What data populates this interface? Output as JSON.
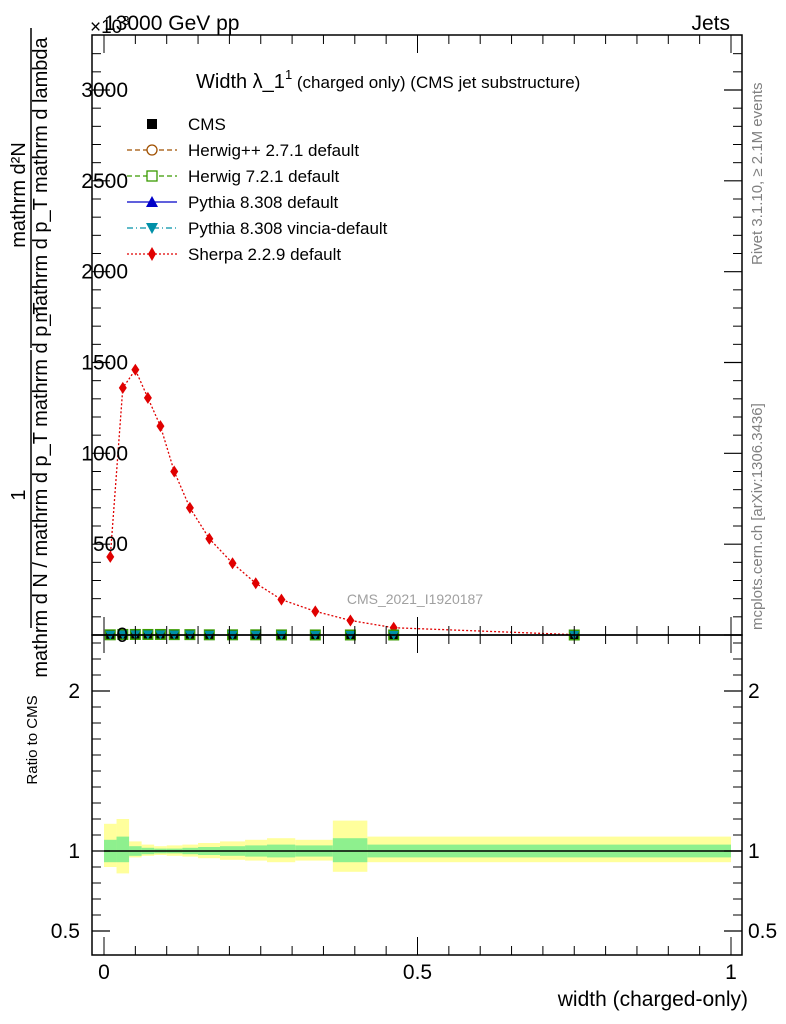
{
  "header": {
    "left": "13000 GeV pp",
    "right": "Jets",
    "exponent_label": "×10",
    "exponent_power": "3"
  },
  "side_labels": {
    "rivet": "Rivet 3.1.10, ≥ 2.1M events",
    "mcplots": "mcplots.cern.ch [arXiv:1306.3436]"
  },
  "watermark": "CMS_2021_I1920187",
  "chart_data": [
    {
      "type": "line",
      "title": "Width λ_1¹ (charged only) (CMS jet substructure)",
      "title_main": "Width λ_1",
      "title_sup": "1",
      "title_rest": " (charged only) (CMS jet substructure)",
      "ylabel_parts": [
        "mathrm d²N",
        "mathrm d p_T mathrm d lambda",
        "mathrm d N / mathrm d p_T mathrm d p_T"
      ],
      "xlim": [
        0,
        1
      ],
      "ylim": [
        0,
        3000
      ],
      "yticks": [
        {
          "v": 0,
          "label": "0"
        },
        {
          "v": 500,
          "label": "500"
        },
        {
          "v": 1000,
          "label": "1000"
        },
        {
          "v": 1500,
          "label": "1500"
        },
        {
          "v": 2000,
          "label": "2000"
        },
        {
          "v": 2500,
          "label": "2500"
        },
        {
          "v": 3000,
          "label": "3000"
        }
      ],
      "grid": false,
      "legend_position": "top-left",
      "legend": [
        {
          "name": "CMS",
          "color": "#000000",
          "marker": "square-filled",
          "dash": "none"
        },
        {
          "name": "Herwig++ 2.7.1 default",
          "color": "#a05000",
          "marker": "circle-open",
          "dash": "dashed"
        },
        {
          "name": "Herwig 7.2.1 default",
          "color": "#3a9a00",
          "marker": "square-open",
          "dash": "dashed"
        },
        {
          "name": "Pythia 8.308 default",
          "color": "#0000c8",
          "marker": "triangle-up",
          "dash": "solid"
        },
        {
          "name": "Pythia 8.308 vincia-default",
          "color": "#0090a8",
          "marker": "triangle-down",
          "dash": "dashdot"
        },
        {
          "name": "Sherpa 2.2.9 default",
          "color": "#e00000",
          "marker": "diamond",
          "dash": "dotted"
        }
      ],
      "series": [
        {
          "name": "Sherpa 2.2.9 default",
          "color": "#e00000",
          "x": [
            0.01,
            0.03,
            0.05,
            0.07,
            0.09,
            0.112,
            0.137,
            0.168,
            0.205,
            0.242,
            0.283,
            0.337,
            0.393,
            0.462,
            0.75
          ],
          "y": [
            430,
            1360,
            1460,
            1305,
            1150,
            900,
            700,
            530,
            395,
            285,
            195,
            130,
            80,
            40,
            2
          ]
        },
        {
          "name": "CMS",
          "color": "#000000",
          "x": [
            0.01,
            0.03,
            0.05,
            0.07,
            0.09,
            0.112,
            0.137,
            0.168,
            0.205,
            0.242,
            0.283,
            0.337,
            0.393,
            0.462,
            0.75
          ],
          "y": [
            1,
            3,
            3,
            3,
            3,
            2,
            2,
            1,
            1,
            1,
            0.5,
            0.3,
            0.2,
            0.1,
            0.002
          ]
        }
      ]
    },
    {
      "type": "area",
      "title": "",
      "xlabel": "width (charged-only)",
      "ylabel": "Ratio to CMS",
      "xlim": [
        0,
        1
      ],
      "ylim": [
        0.35,
        2.35
      ],
      "yticks": [
        {
          "v": 0.5,
          "label": "0.5"
        },
        {
          "v": 1,
          "label": "1"
        },
        {
          "v": 2,
          "label": "2"
        }
      ],
      "xticks": [
        {
          "v": 0,
          "label": "0"
        },
        {
          "v": 0.5,
          "label": "0.5"
        },
        {
          "v": 1,
          "label": "1"
        }
      ],
      "bins": [
        {
          "x0": 0.0,
          "x1": 0.02,
          "stat": [
            0.93,
            1.07
          ],
          "total": [
            0.9,
            1.17
          ]
        },
        {
          "x0": 0.02,
          "x1": 0.04,
          "stat": [
            0.93,
            1.09
          ],
          "total": [
            0.86,
            1.2
          ]
        },
        {
          "x0": 0.04,
          "x1": 0.06,
          "stat": [
            0.97,
            1.03
          ],
          "total": [
            0.96,
            1.06
          ]
        },
        {
          "x0": 0.06,
          "x1": 0.08,
          "stat": [
            0.98,
            1.02
          ],
          "total": [
            0.97,
            1.04
          ]
        },
        {
          "x0": 0.08,
          "x1": 0.1,
          "stat": [
            0.985,
            1.015
          ],
          "total": [
            0.975,
            1.03
          ]
        },
        {
          "x0": 0.1,
          "x1": 0.125,
          "stat": [
            0.985,
            1.015
          ],
          "total": [
            0.97,
            1.035
          ]
        },
        {
          "x0": 0.125,
          "x1": 0.15,
          "stat": [
            0.98,
            1.02
          ],
          "total": [
            0.965,
            1.04
          ]
        },
        {
          "x0": 0.15,
          "x1": 0.185,
          "stat": [
            0.975,
            1.025
          ],
          "total": [
            0.955,
            1.05
          ]
        },
        {
          "x0": 0.185,
          "x1": 0.225,
          "stat": [
            0.97,
            1.03
          ],
          "total": [
            0.945,
            1.06
          ]
        },
        {
          "x0": 0.225,
          "x1": 0.26,
          "stat": [
            0.965,
            1.035
          ],
          "total": [
            0.94,
            1.07
          ]
        },
        {
          "x0": 0.26,
          "x1": 0.305,
          "stat": [
            0.96,
            1.04
          ],
          "total": [
            0.93,
            1.08
          ]
        },
        {
          "x0": 0.305,
          "x1": 0.365,
          "stat": [
            0.965,
            1.035
          ],
          "total": [
            0.94,
            1.07
          ]
        },
        {
          "x0": 0.365,
          "x1": 0.42,
          "stat": [
            0.93,
            1.08
          ],
          "total": [
            0.87,
            1.19
          ]
        },
        {
          "x0": 0.42,
          "x1": 0.5,
          "stat": [
            0.96,
            1.04
          ],
          "total": [
            0.93,
            1.09
          ]
        },
        {
          "x0": 0.5,
          "x1": 1.0,
          "stat": [
            0.96,
            1.04
          ],
          "total": [
            0.93,
            1.09
          ]
        }
      ],
      "band_colors": {
        "stat": "#8ef08e",
        "total": "#ffff9c"
      }
    }
  ]
}
